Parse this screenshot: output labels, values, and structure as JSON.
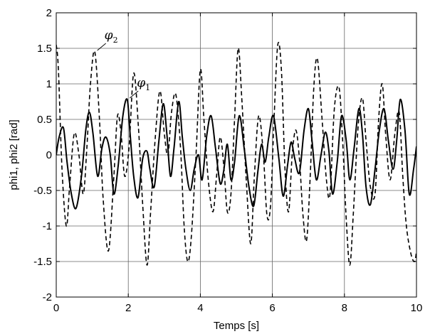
{
  "chart_data": {
    "type": "line",
    "title": "",
    "xlabel": "Temps [s]",
    "ylabel": "phi1, phi2 [rad]",
    "xlim": [
      0,
      10
    ],
    "ylim": [
      -2,
      2
    ],
    "x_ticks": [
      "0",
      "2",
      "4",
      "6",
      "8",
      "10"
    ],
    "y_ticks": [
      "-2",
      "-1.5",
      "-1",
      "-0.5",
      "0",
      "0.5",
      "1",
      "1.5",
      "2"
    ],
    "grid": true,
    "legend": "none",
    "annotations": [
      {
        "symbol": "φ",
        "subscript": "2",
        "points_to_series": "phi2",
        "x": 1.1,
        "y": 1.45
      },
      {
        "symbol": "φ",
        "subscript": "1",
        "points_to_series": "phi1",
        "x": 2.0,
        "y": 0.78
      }
    ],
    "series": [
      {
        "key": "phi1",
        "style": "solid",
        "color": "#000000",
        "x": [
          0,
          0.08,
          0.2,
          0.3,
          0.42,
          0.55,
          0.7,
          0.82,
          0.92,
          1.02,
          1.15,
          1.27,
          1.38,
          1.5,
          1.6,
          1.72,
          1.85,
          1.97,
          2.05,
          2.15,
          2.27,
          2.4,
          2.52,
          2.6,
          2.72,
          2.85,
          2.97,
          3.07,
          3.17,
          3.27,
          3.4,
          3.5,
          3.6,
          3.72,
          3.83,
          3.95,
          4.05,
          4.18,
          4.3,
          4.42,
          4.55,
          4.65,
          4.75,
          4.85,
          4.95,
          5.08,
          5.22,
          5.35,
          5.48,
          5.6,
          5.7,
          5.8,
          5.9,
          6.03,
          6.18,
          6.3,
          6.42,
          6.52,
          6.62,
          6.75,
          6.88,
          7.0,
          7.1,
          7.22,
          7.35,
          7.47,
          7.57,
          7.67,
          7.8,
          7.92,
          8.05,
          8.15,
          8.27,
          8.4,
          8.5,
          8.6,
          8.72,
          8.85,
          8.97,
          9.1,
          9.22,
          9.35,
          9.45,
          9.55,
          9.68,
          9.8,
          9.92,
          10.0
        ],
        "y": [
          0.0,
          0.25,
          0.38,
          -0.1,
          -0.55,
          -0.75,
          -0.3,
          0.35,
          0.6,
          0.3,
          -0.3,
          0.1,
          0.25,
          0.0,
          -0.55,
          -0.15,
          0.55,
          0.78,
          0.3,
          -0.3,
          -0.6,
          -0.05,
          0.05,
          -0.2,
          -0.45,
          0.2,
          0.72,
          0.3,
          -0.3,
          0.1,
          0.75,
          0.25,
          -0.2,
          -0.5,
          -0.2,
          0.0,
          -0.35,
          0.28,
          0.55,
          0.1,
          -0.4,
          -0.22,
          0.15,
          -0.35,
          -0.1,
          0.55,
          0.08,
          -0.45,
          -0.72,
          -0.22,
          0.15,
          -0.1,
          0.25,
          0.55,
          -0.05,
          -0.58,
          -0.15,
          0.18,
          -0.05,
          -0.25,
          0.35,
          0.65,
          0.2,
          -0.35,
          0.0,
          0.32,
          0.05,
          -0.55,
          -0.1,
          0.55,
          0.2,
          -0.35,
          0.1,
          0.65,
          0.3,
          -0.45,
          -0.7,
          -0.2,
          0.35,
          0.65,
          0.2,
          -0.2,
          0.2,
          0.78,
          0.35,
          -0.55,
          -0.2,
          0.12
        ]
      },
      {
        "key": "phi2",
        "style": "dashed",
        "color": "#000000",
        "x": [
          0,
          0.06,
          0.16,
          0.28,
          0.37,
          0.5,
          0.63,
          0.75,
          0.85,
          0.95,
          1.07,
          1.2,
          1.3,
          1.45,
          1.6,
          1.7,
          1.8,
          1.9,
          2.02,
          2.15,
          2.28,
          2.4,
          2.52,
          2.62,
          2.75,
          2.88,
          3.0,
          3.1,
          3.2,
          3.32,
          3.45,
          3.55,
          3.65,
          3.75,
          3.88,
          4.0,
          4.1,
          4.22,
          4.35,
          4.45,
          4.55,
          4.65,
          4.75,
          4.85,
          4.95,
          5.05,
          5.15,
          5.28,
          5.4,
          5.5,
          5.62,
          5.75,
          5.85,
          5.95,
          6.05,
          6.15,
          6.25,
          6.35,
          6.45,
          6.55,
          6.65,
          6.75,
          6.85,
          6.95,
          7.05,
          7.15,
          7.25,
          7.38,
          7.5,
          7.6,
          7.72,
          7.85,
          7.95,
          8.05,
          8.15,
          8.25,
          8.38,
          8.5,
          8.6,
          8.72,
          8.85,
          8.95,
          9.05,
          9.15,
          9.27,
          9.4,
          9.52,
          9.62,
          9.72,
          9.85,
          9.95,
          10.0
        ],
        "y": [
          1.55,
          1.2,
          -0.2,
          -1.0,
          -0.45,
          0.3,
          0.0,
          -0.55,
          0.1,
          1.0,
          1.45,
          0.5,
          -0.6,
          -1.35,
          -0.3,
          0.55,
          0.3,
          -0.3,
          0.1,
          1.15,
          0.4,
          -0.7,
          -1.55,
          -0.8,
          0.25,
          0.9,
          0.3,
          0.0,
          0.6,
          0.85,
          0.1,
          -1.0,
          -1.5,
          -1.15,
          0.0,
          1.2,
          0.5,
          -0.35,
          -0.8,
          -0.3,
          0.25,
          -0.15,
          -0.8,
          -0.55,
          0.5,
          1.5,
          0.8,
          -0.4,
          -1.25,
          -0.3,
          0.55,
          0.0,
          -0.85,
          -0.7,
          0.55,
          1.55,
          1.2,
          -0.2,
          -0.8,
          0.0,
          0.35,
          -0.05,
          -0.85,
          -1.2,
          -0.3,
          0.95,
          1.35,
          0.5,
          -0.35,
          -0.55,
          0.65,
          0.95,
          0.2,
          -0.9,
          -1.55,
          -0.8,
          0.4,
          0.8,
          0.2,
          -0.45,
          -0.55,
          0.5,
          1.0,
          0.25,
          -0.35,
          0.3,
          0.6,
          -0.3,
          -1.0,
          -1.4,
          -1.5,
          -1.35
        ]
      }
    ]
  }
}
